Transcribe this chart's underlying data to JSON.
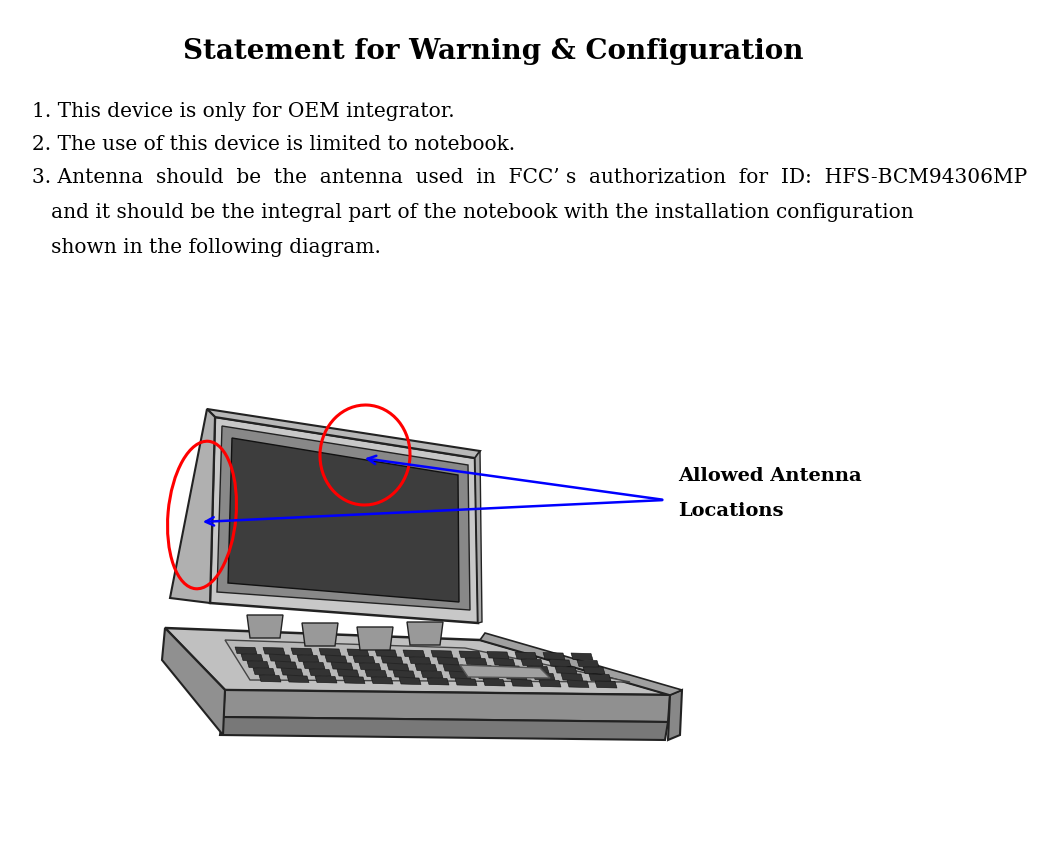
{
  "title": "Statement for Warning & Configuration",
  "line1": "1. This device is only for OEM integrator.",
  "line2": "2. The use of this device is limited to notebook.",
  "line3a": "3. Antenna  should  be  the  antenna  used  in  FCC’ s  authorization  for  ID:  HFS-BCM94306MP",
  "line3b": "   and it should be the integral part of the notebook with the installation configuration",
  "line3c": "   shown in the following diagram.",
  "label_line1": "Allowed Antenna",
  "label_line2": "Locations",
  "background_color": "#ffffff",
  "text_color": "#000000",
  "title_fontsize": 20,
  "body_fontsize": 14.5,
  "label_fontsize": 14
}
